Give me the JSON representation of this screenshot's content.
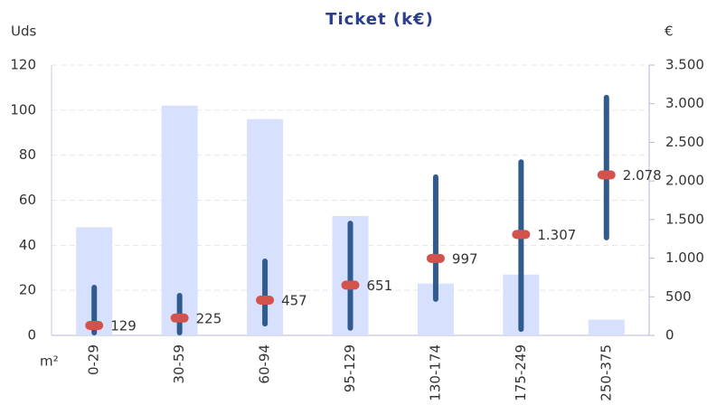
{
  "chart_data": {
    "type": "bar-range",
    "title": "Ticket (k€)",
    "y_label": "Uds",
    "y2_label": "€",
    "x_label": "m²",
    "categories": [
      "0-29",
      "30-59",
      "60-94",
      "95-129",
      "130-174",
      "175-249",
      "250-375"
    ],
    "series": [
      {
        "kind": "bar",
        "color": "#d7e0fc",
        "values": [
          48,
          102,
          96,
          53,
          23,
          27,
          7
        ]
      },
      {
        "kind": "range",
        "axis": "y2",
        "color": "#2f5b8f",
        "low": [
          35,
          35,
          150,
          95,
          470,
          80,
          1265
        ],
        "high": [
          620,
          515,
          960,
          1450,
          2050,
          2245,
          3080
        ]
      },
      {
        "kind": "median",
        "axis": "y2",
        "color": "#d2524c",
        "label_color": "#5b8ac6",
        "values": [
          129,
          225,
          457,
          651,
          997,
          1307,
          2078
        ],
        "value_labels": [
          "129",
          "225",
          "457",
          "651",
          "997",
          "1.307",
          "2.078"
        ]
      }
    ],
    "ylim": [
      0,
      120
    ],
    "yticks": [
      0,
      20,
      40,
      60,
      80,
      100,
      120
    ],
    "y2lim": [
      0,
      3500
    ],
    "y2ticks": [
      0,
      500,
      {
        "value": 1000,
        "label": "1.000"
      },
      {
        "value": 1500,
        "label": "1.500"
      },
      {
        "value": 2000,
        "label": "2.000"
      },
      {
        "value": 2500,
        "label": "2.500"
      },
      {
        "value": 3000,
        "label": "3.000"
      },
      {
        "value": 3500,
        "label": "3.500"
      }
    ],
    "grid": true
  }
}
